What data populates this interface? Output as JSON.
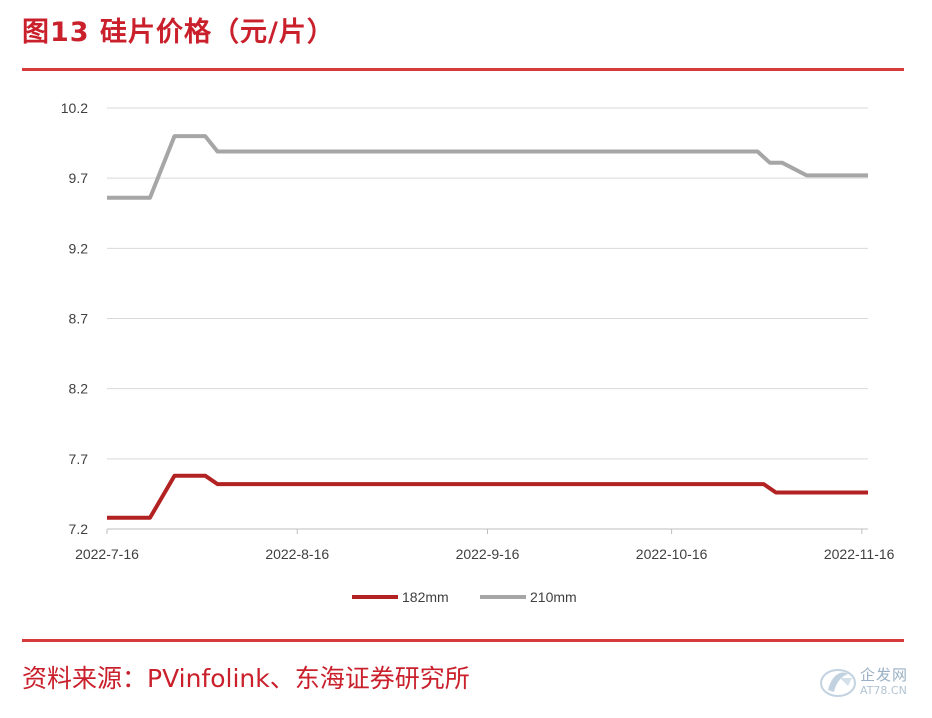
{
  "header": {
    "title": "图13  硅片价格（元/片）"
  },
  "footer": {
    "source": "资料来源：PVinfolink、东海证券研究所"
  },
  "watermark": {
    "name": "企发网",
    "url": "AT78.CN"
  },
  "colors": {
    "accent": "#c9202c",
    "series_182": "#b22222",
    "series_210": "#a6a6a6",
    "grid": "#d9d9d9"
  },
  "chart_data": {
    "type": "line",
    "title": "",
    "xlabel": "",
    "ylabel": "",
    "x_range": [
      "2022-7-16",
      "2022-11-17"
    ],
    "ylim": [
      7.2,
      10.2
    ],
    "y_ticks": [
      "10.2",
      "9.7",
      "9.2",
      "8.7",
      "8.2",
      "7.7",
      "7.2"
    ],
    "x_ticks": [
      "2022-7-16",
      "2022-8-16",
      "2022-9-16",
      "2022-10-16",
      "2022-11-16"
    ],
    "grid": true,
    "legend_position": "bottom",
    "series": [
      {
        "name": "182mm",
        "points": [
          [
            "2022-7-16",
            7.28
          ],
          [
            "2022-7-23",
            7.28
          ],
          [
            "2022-7-27",
            7.58
          ],
          [
            "2022-8-1",
            7.58
          ],
          [
            "2022-8-3",
            7.52
          ],
          [
            "2022-10-31",
            7.52
          ],
          [
            "2022-11-2",
            7.46
          ],
          [
            "2022-11-17",
            7.46
          ]
        ]
      },
      {
        "name": "210mm",
        "points": [
          [
            "2022-7-16",
            9.56
          ],
          [
            "2022-7-23",
            9.56
          ],
          [
            "2022-7-27",
            10.0
          ],
          [
            "2022-8-1",
            10.0
          ],
          [
            "2022-8-3",
            9.89
          ],
          [
            "2022-10-30",
            9.89
          ],
          [
            "2022-11-1",
            9.81
          ],
          [
            "2022-11-3",
            9.81
          ],
          [
            "2022-11-7",
            9.72
          ],
          [
            "2022-11-17",
            9.72
          ]
        ]
      }
    ]
  }
}
